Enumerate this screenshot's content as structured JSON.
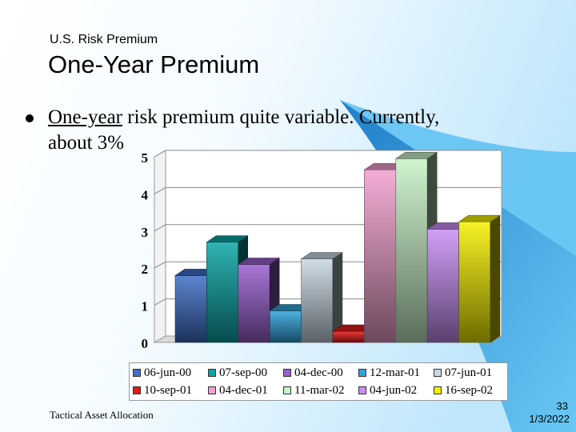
{
  "slide": {
    "supertitle": "U.S. Risk Premium",
    "title": "One-Year Premium",
    "bullet_underlined": "One-year",
    "bullet_rest_1": " risk premium quite variable. Currently,",
    "bullet_rest_2": "about 3%",
    "footer": "Tactical Asset Allocation",
    "page_number": "33",
    "date": "1/3/2022"
  },
  "colors": {
    "background_light": "#ffffff",
    "background_blue": "#5bbff2",
    "background_dark_blue": "#1f7fc8"
  },
  "chart_data": {
    "type": "bar",
    "categories": [
      "06-jun-00",
      "07-sep-00",
      "04-dec-00",
      "12-mar-01",
      "07-jun-01",
      "10-sep-01",
      "04-dec-01",
      "11-mar-02",
      "04-jun-02",
      "16-sep-02"
    ],
    "values": [
      1.8,
      2.7,
      2.1,
      0.85,
      2.25,
      0.3,
      4.65,
      4.95,
      3.05,
      3.25
    ],
    "colors": [
      "#3f6fc8",
      "#0aa6a6",
      "#9a5fd0",
      "#2fa3dc",
      "#c8d8e4",
      "#e81818",
      "#f2a0cf",
      "#c8f2c8",
      "#c98ff5",
      "#f5f000"
    ],
    "ylim": [
      0,
      5
    ],
    "yticks": [
      "0",
      "1",
      "2",
      "3",
      "4",
      "5"
    ],
    "grid": true,
    "legend": "bottom"
  }
}
